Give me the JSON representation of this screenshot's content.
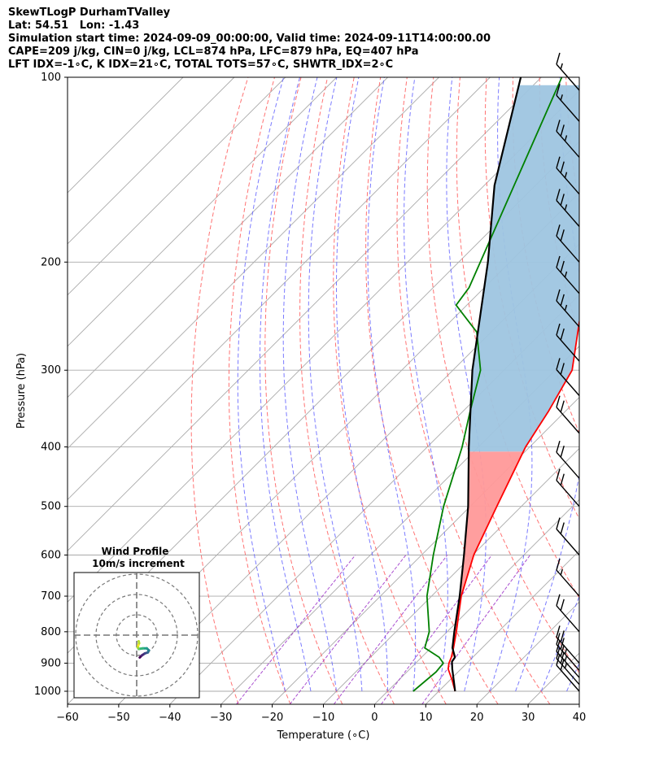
{
  "header": {
    "title": "SkewTLogP DurhamTValley",
    "location": "Lat: 54.51   Lon: -1.43",
    "times": "Simulation start time: 2024-09-09_00:00:00, Valid time: 2024-09-11T14:00:00.00",
    "params": "CAPE=209 j/kg, CIN=0 j/kg, LCL=874 hPa, LFC=879 hPa, EQ=407 hPa",
    "indices": "LFT IDX=-1∘C, K IDX=21∘C, TOTAL TOTS=57∘C, SHWTR_IDX=2∘C"
  },
  "chart_data": {
    "type": "line",
    "subtype": "skew-T log-P diagram",
    "xlabel": "Temperature (∘C)",
    "ylabel": "Pressure (hPa)",
    "xlim": [
      -60,
      40
    ],
    "ylim": [
      1050,
      100
    ],
    "y_scale": "log",
    "x_ticks": [
      "−60",
      "−50",
      "−40",
      "−30",
      "−20",
      "−10",
      "0",
      "10",
      "20",
      "30",
      "40"
    ],
    "y_ticks": [
      1000,
      900,
      800,
      700,
      600,
      500,
      400,
      300,
      200,
      100
    ],
    "grid": true,
    "series": [
      {
        "role": "temperature",
        "color": "#ff0000",
        "points": [
          [
            13.2,
            1000
          ],
          [
            10.5,
            960
          ],
          [
            7.5,
            920
          ],
          [
            6.5,
            900
          ],
          [
            5.8,
            880
          ],
          [
            4.4,
            850
          ],
          [
            1.8,
            800
          ],
          [
            -4.2,
            700
          ],
          [
            -9.8,
            600
          ],
          [
            -14.8,
            500
          ],
          [
            -20.8,
            400
          ],
          [
            -23.3,
            350
          ],
          [
            -26.7,
            300
          ],
          [
            -34.8,
            250
          ],
          [
            -42.5,
            200
          ],
          [
            -50.3,
            160
          ],
          [
            -56.7,
            130
          ],
          [
            -60.9,
            110
          ],
          [
            -63.3,
            100
          ]
        ]
      },
      {
        "role": "dewpoint",
        "color": "#008000",
        "points": [
          [
            5.0,
            1000
          ],
          [
            5.7,
            930
          ],
          [
            5.4,
            900
          ],
          [
            3.4,
            880
          ],
          [
            -1.2,
            850
          ],
          [
            -3.5,
            800
          ],
          [
            -10.9,
            700
          ],
          [
            -17.7,
            600
          ],
          [
            -25.2,
            500
          ],
          [
            -33.2,
            400
          ],
          [
            -38.6,
            350
          ],
          [
            -44.6,
            300
          ],
          [
            -52.8,
            260
          ],
          [
            -62.1,
            235
          ],
          [
            -63.0,
            220
          ],
          [
            -86.0,
            100
          ]
        ]
      },
      {
        "role": "parcel",
        "color": "#000000",
        "points": [
          [
            13.2,
            1000
          ],
          [
            10.8,
            960
          ],
          [
            8.3,
            920
          ],
          [
            6.8,
            895
          ],
          [
            6.5,
            880
          ],
          [
            4.2,
            850
          ],
          [
            1.4,
            800
          ],
          [
            -4.5,
            700
          ],
          [
            -11.7,
            600
          ],
          [
            -20.4,
            500
          ],
          [
            -31.9,
            400
          ],
          [
            -46.2,
            300
          ],
          [
            -64.3,
            200
          ],
          [
            -78.0,
            150
          ],
          [
            -94.0,
            100
          ]
        ]
      }
    ],
    "shading": [
      {
        "name": "CAPE",
        "color": "#ff9999",
        "between": [
          "temperature",
          "parcel"
        ],
        "from_hpa": 879,
        "to_hpa": 407
      },
      {
        "name": "CIN",
        "color": "#9ec5e0",
        "between": [
          "temperature",
          "parcel"
        ],
        "from_hpa": 407,
        "to_hpa": 100
      }
    ],
    "background_lines": {
      "isotherms": {
        "color": "#aaaaaa"
      },
      "dry_adiabats": {
        "color": "#ff6464"
      },
      "moist_adiabats": {
        "color": "#6464ff"
      },
      "mixing_ratio": {
        "color": "#9b30c8"
      }
    },
    "wind_barbs": [
      {
        "p": 1000,
        "speed_kt": 20
      },
      {
        "p": 975,
        "speed_kt": 25
      },
      {
        "p": 950,
        "speed_kt": 25
      },
      {
        "p": 925,
        "speed_kt": 25
      },
      {
        "p": 900,
        "speed_kt": 20
      },
      {
        "p": 800,
        "speed_kt": 20
      },
      {
        "p": 700,
        "speed_kt": 15
      },
      {
        "p": 600,
        "speed_kt": 20
      },
      {
        "p": 500,
        "speed_kt": 20
      },
      {
        "p": 450,
        "speed_kt": 20
      },
      {
        "p": 380,
        "speed_kt": 20
      },
      {
        "p": 330,
        "speed_kt": 20
      },
      {
        "p": 290,
        "speed_kt": 20
      },
      {
        "p": 255,
        "speed_kt": 25
      },
      {
        "p": 225,
        "speed_kt": 25
      },
      {
        "p": 200,
        "speed_kt": 20
      },
      {
        "p": 175,
        "speed_kt": 25
      },
      {
        "p": 155,
        "speed_kt": 25
      },
      {
        "p": 135,
        "speed_kt": 25
      },
      {
        "p": 118,
        "speed_kt": 15
      },
      {
        "p": 105,
        "speed_kt": 15
      }
    ],
    "hodograph": {
      "title": "Wind Profile",
      "subtitle": "10m/s increment",
      "rings_ms": [
        10,
        20,
        30
      ],
      "points": [
        [
          1.5,
          -11
        ],
        [
          2.5,
          -10
        ],
        [
          4,
          -9
        ],
        [
          5.5,
          -8.5
        ],
        [
          6,
          -7.5
        ],
        [
          5,
          -6.5
        ],
        [
          3,
          -6.5
        ],
        [
          1,
          -6.8
        ],
        [
          0.5,
          -6
        ],
        [
          0.8,
          -5
        ],
        [
          1.2,
          -4
        ],
        [
          1,
          -3
        ]
      ]
    }
  }
}
